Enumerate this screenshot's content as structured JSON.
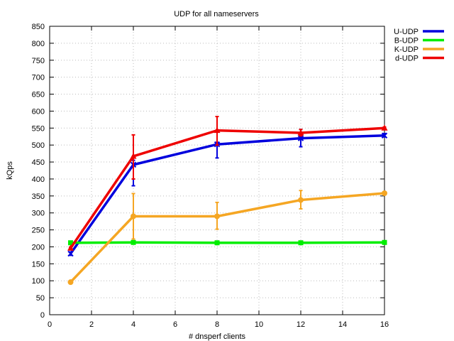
{
  "chart_data": {
    "type": "line",
    "title": "UDP for all nameservers",
    "xlabel": "# dnsperf clients",
    "ylabel": "kQps",
    "xlim": [
      0,
      16
    ],
    "ylim": [
      0,
      850
    ],
    "xticks": [
      0,
      2,
      4,
      6,
      8,
      10,
      12,
      14,
      16
    ],
    "yticks": [
      0,
      50,
      100,
      150,
      200,
      250,
      300,
      350,
      400,
      450,
      500,
      550,
      600,
      650,
      700,
      750,
      800,
      850
    ],
    "grid": true,
    "legend_position": "top-right, outside plot",
    "series": [
      {
        "name": "U-UDP",
        "color": "#0000dd",
        "marker": "x",
        "x": [
          1,
          4,
          8,
          12,
          16
        ],
        "y": [
          180,
          442,
          502,
          520,
          528
        ],
        "err_low": [
          175,
          380,
          462,
          495,
          524
        ],
        "err_high": [
          185,
          455,
          508,
          546,
          534
        ]
      },
      {
        "name": "B-UDP",
        "color": "#00ee00",
        "marker": "square",
        "x": [
          1,
          4,
          8,
          12,
          16
        ],
        "y": [
          212,
          213,
          212,
          212,
          213
        ],
        "err_low": [
          211,
          212,
          211,
          211,
          212
        ],
        "err_high": [
          213,
          214,
          213,
          213,
          214
        ]
      },
      {
        "name": "K-UDP",
        "color": "#f5a623",
        "marker": "circle",
        "x": [
          1,
          4,
          8,
          12,
          16
        ],
        "y": [
          96,
          290,
          290,
          338,
          358
        ],
        "err_low": [
          95,
          223,
          252,
          312,
          355
        ],
        "err_high": [
          97,
          357,
          331,
          366,
          361
        ]
      },
      {
        "name": "d-UDP",
        "color": "#ee0000",
        "marker": "triangle",
        "x": [
          1,
          4,
          8,
          12,
          16
        ],
        "y": [
          196,
          467,
          543,
          536,
          550
        ],
        "err_low": [
          193,
          400,
          500,
          527,
          547
        ],
        "err_high": [
          199,
          530,
          584,
          546,
          553
        ]
      }
    ]
  }
}
